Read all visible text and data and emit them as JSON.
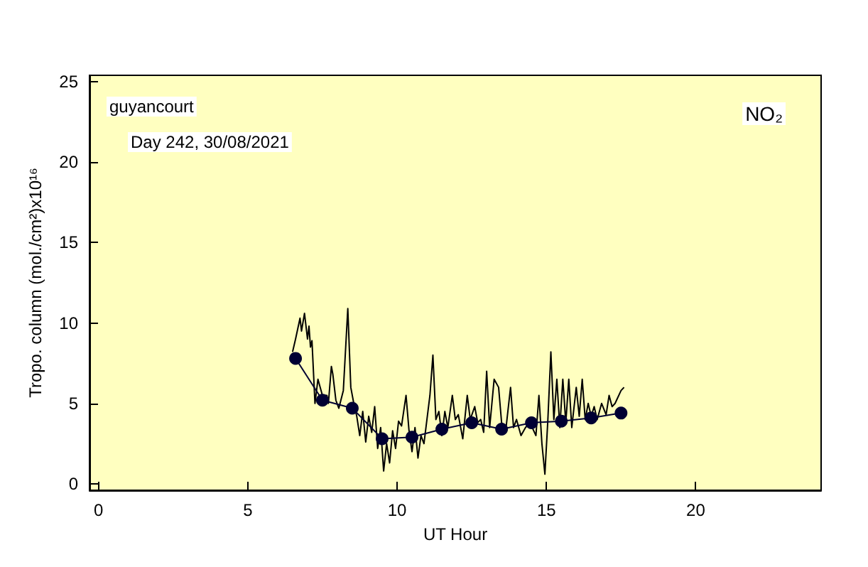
{
  "chart_data": {
    "type": "line",
    "xlabel": "UT Hour",
    "ylabel": "Tropo. column (mol./cm²)x10¹⁶",
    "annotations": [
      "guyancourt",
      "Day 242, 30/08/2021",
      "NO₂"
    ],
    "xlim": [
      -0.3,
      24.2
    ],
    "ylim": [
      -0.4,
      25.4
    ],
    "xticks": [
      0,
      5,
      10,
      15,
      20
    ],
    "yticks": [
      0,
      5,
      10,
      15,
      20,
      25
    ],
    "series": [
      {
        "marker": "none",
        "color": "#000000",
        "x": [
          6.5,
          6.6,
          6.75,
          6.8,
          6.9,
          7.0,
          7.05,
          7.1,
          7.15,
          7.25,
          7.35,
          7.5,
          7.65,
          7.7,
          7.8,
          7.85,
          7.95,
          8.05,
          8.2,
          8.35,
          8.45,
          8.55,
          8.65,
          8.75,
          8.85,
          8.95,
          9.05,
          9.15,
          9.25,
          9.35,
          9.45,
          9.55,
          9.65,
          9.75,
          9.85,
          9.95,
          10.05,
          10.15,
          10.3,
          10.4,
          10.5,
          10.6,
          10.7,
          10.8,
          10.9,
          11.0,
          11.1,
          11.2,
          11.3,
          11.4,
          11.5,
          11.6,
          11.7,
          11.85,
          11.95,
          12.05,
          12.2,
          12.35,
          12.45,
          12.6,
          12.7,
          12.8,
          12.9,
          13.0,
          13.1,
          13.25,
          13.4,
          13.5,
          13.65,
          13.8,
          13.9,
          14.0,
          14.15,
          14.3,
          14.45,
          14.65,
          14.75,
          14.85,
          14.95,
          15.05,
          15.15,
          15.25,
          15.35,
          15.45,
          15.55,
          15.65,
          15.75,
          15.85,
          16.0,
          16.1,
          16.2,
          16.3,
          16.4,
          16.5,
          16.6,
          16.7,
          16.85,
          17.0,
          17.1,
          17.2,
          17.3,
          17.5,
          17.6
        ],
        "values": [
          8.2,
          9,
          10.3,
          9.5,
          10.6,
          9,
          9.8,
          8.5,
          8.9,
          5.0,
          6.5,
          5.5,
          5.5,
          5.0,
          7.3,
          6.8,
          5.2,
          4.7,
          5.8,
          10.9,
          6.0,
          5.0,
          4.2,
          3.0,
          4.5,
          2.6,
          4.2,
          3.2,
          4.8,
          2.2,
          3.5,
          0.8,
          2.5,
          1.3,
          3.3,
          2.2,
          3.9,
          3.6,
          5.5,
          3.3,
          2.0,
          3.5,
          1.6,
          3.0,
          2.5,
          4.0,
          5.5,
          8.0,
          4.0,
          4.5,
          3.0,
          4.5,
          3.5,
          5.5,
          4.0,
          4.3,
          2.8,
          5.5,
          4.0,
          4.8,
          3.8,
          4.0,
          3.2,
          7.0,
          3.5,
          6.5,
          6.0,
          3.8,
          3.5,
          6.0,
          3.5,
          4.0,
          3.0,
          3.5,
          3.8,
          3.0,
          5.5,
          2.5,
          0.6,
          4.0,
          8.2,
          4.0,
          6.5,
          3.5,
          6.5,
          3.8,
          6.5,
          3.5,
          6.0,
          4.2,
          6.5,
          4.0,
          5.0,
          4.2,
          4.8,
          4.0,
          5.0,
          4.3,
          5.5,
          4.8,
          5.0,
          5.8,
          6.0
        ]
      },
      {
        "marker": "circle",
        "color": "#000033",
        "x": [
          6.6,
          7.5,
          8.5,
          9.5,
          10.5,
          11.5,
          12.5,
          13.5,
          14.5,
          15.5,
          16.5,
          17.5
        ],
        "values": [
          7.8,
          5.2,
          4.7,
          2.8,
          2.9,
          3.4,
          3.8,
          3.4,
          3.8,
          3.9,
          4.1,
          4.4
        ]
      }
    ]
  }
}
